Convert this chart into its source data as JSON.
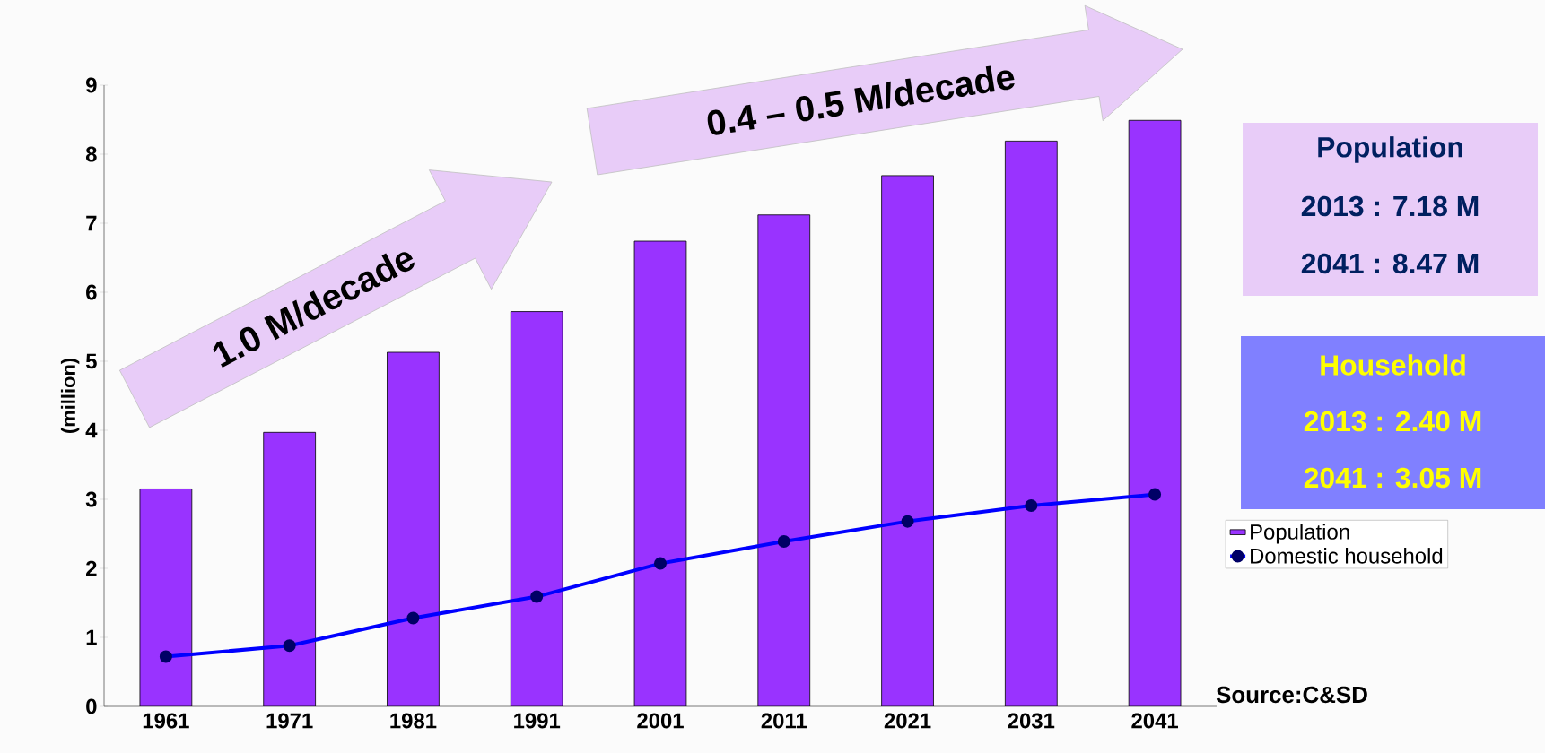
{
  "chart_data": {
    "type": "bar",
    "categories": [
      "1961",
      "1971",
      "1981",
      "1991",
      "2001",
      "2011",
      "2021",
      "2031",
      "2041"
    ],
    "series": [
      {
        "name": "Population",
        "color": "#9933ff",
        "values": [
          3.15,
          3.97,
          5.13,
          5.72,
          6.74,
          7.12,
          7.69,
          8.19,
          8.49
        ]
      },
      {
        "name": "Domestic household",
        "type": "line",
        "color": "#0000ff",
        "marker": "circle",
        "values": [
          0.72,
          0.88,
          1.28,
          1.59,
          2.07,
          2.39,
          2.68,
          2.91,
          3.07
        ]
      }
    ],
    "ylabel": "(million)",
    "ylim": [
      0,
      9
    ],
    "yticks": [
      0,
      1,
      2,
      3,
      4,
      5,
      6,
      7,
      8,
      9
    ],
    "legend": "right",
    "annotations": [
      "1.0 M/decade",
      "0.4 – 0.5 M/decade",
      "Population",
      "2013 : 7.18 M",
      "2041 : 8.47 M",
      "Household",
      "2013 : 2.40 M",
      "2041 : 3.05 M",
      "Source:C&SD"
    ]
  }
}
